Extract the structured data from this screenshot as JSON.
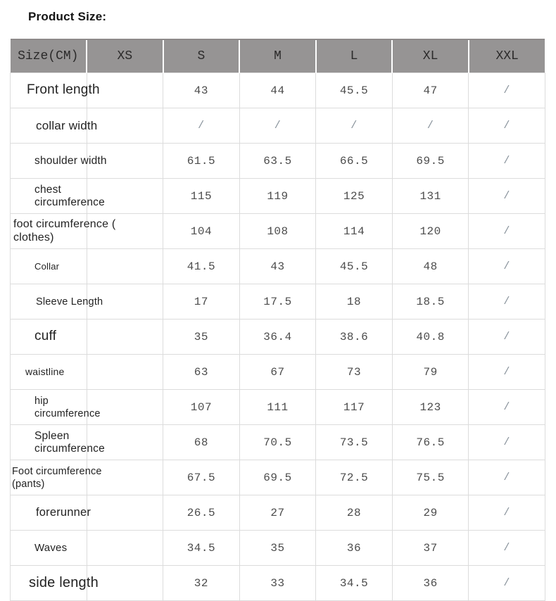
{
  "title": "Product Size:",
  "colors": {
    "header_bg": "#969494",
    "header_divider": "#ffffff",
    "header_top_edge": "#8d8a8a",
    "grid_line": "#dcdcdc",
    "title_text": "#151515",
    "label_text": "#232323",
    "value_text": "#4c4c4c",
    "slash_text": "#87919a"
  },
  "table": {
    "columns": [
      "Size(CM)",
      "XS",
      "S",
      "M",
      "L",
      "XL",
      "XXL"
    ],
    "value_columns": [
      "S",
      "M",
      "L",
      "XL",
      "XXL"
    ],
    "rows": [
      {
        "label": "Front length",
        "values": [
          "43",
          "44",
          "45.5",
          "47",
          "/"
        ]
      },
      {
        "label": "collar width",
        "values": [
          "/",
          "/",
          "/",
          "/",
          "/"
        ]
      },
      {
        "label": "shoulder width",
        "values": [
          "61.5",
          "63.5",
          "66.5",
          "69.5",
          "/"
        ]
      },
      {
        "label": "chest\ncircumference",
        "values": [
          "115",
          "119",
          "125",
          "131",
          "/"
        ]
      },
      {
        "label": "foot circumference (\nclothes)",
        "values": [
          "104",
          "108",
          "114",
          "120",
          "/"
        ]
      },
      {
        "label": "Collar",
        "values": [
          "41.5",
          "43",
          "45.5",
          "48",
          "/"
        ]
      },
      {
        "label": "Sleeve Length",
        "values": [
          "17",
          "17.5",
          "18",
          "18.5",
          "/"
        ]
      },
      {
        "label": "cuff",
        "values": [
          "35",
          "36.4",
          "38.6",
          "40.8",
          "/"
        ]
      },
      {
        "label": "waistline",
        "values": [
          "63",
          "67",
          "73",
          "79",
          "/"
        ]
      },
      {
        "label": "hip\ncircumference",
        "values": [
          "107",
          "111",
          "117",
          "123",
          "/"
        ]
      },
      {
        "label": "Spleen\ncircumference",
        "values": [
          "68",
          "70.5",
          "73.5",
          "76.5",
          "/"
        ]
      },
      {
        "label": "Foot circumference\n(pants)",
        "values": [
          "67.5",
          "69.5",
          "72.5",
          "75.5",
          "/"
        ]
      },
      {
        "label": "forerunner",
        "values": [
          "26.5",
          "27",
          "28",
          "29",
          "/"
        ]
      },
      {
        "label": "Waves",
        "values": [
          "34.5",
          "35",
          "36",
          "37",
          "/"
        ]
      },
      {
        "label": "side length",
        "values": [
          "32",
          "33",
          "34.5",
          "36",
          "/"
        ]
      }
    ]
  }
}
